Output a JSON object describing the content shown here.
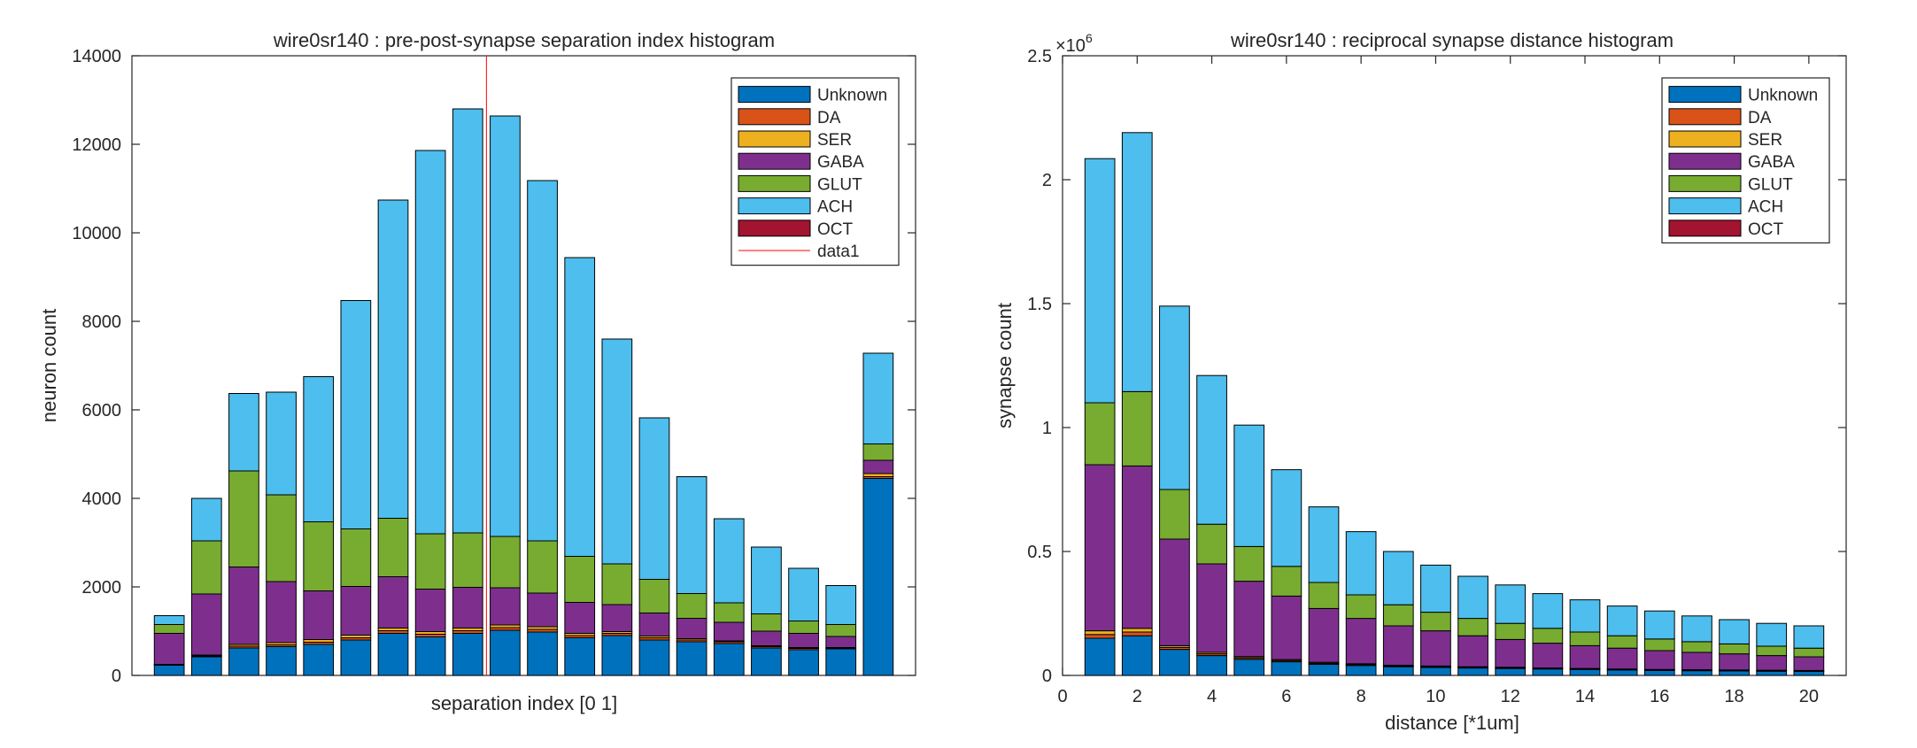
{
  "colors": {
    "Unknown": "#0072BD",
    "DA": "#D95319",
    "SER": "#EDB120",
    "GABA": "#7E2F8E",
    "GLUT": "#77AC30",
    "ACH": "#4DBEEE",
    "OCT": "#A2142F",
    "data1": "#FF0000"
  },
  "chart_data": [
    {
      "type": "bar",
      "stacked": true,
      "title": "wire0sr140 : pre-post-synapse separation index histogram",
      "xlabel": "separation index [0 1]",
      "ylabel": "neuron count",
      "ylim": [
        0,
        14000
      ],
      "yticks": [
        0,
        2000,
        4000,
        6000,
        8000,
        10000,
        12000,
        14000
      ],
      "ytick_labels": [
        "0",
        "2000",
        "4000",
        "6000",
        "8000",
        "10000",
        "12000",
        "14000"
      ],
      "xlim": [
        0,
        21
      ],
      "x": [
        1,
        2,
        3,
        4,
        5,
        6,
        7,
        8,
        9,
        10,
        11,
        12,
        13,
        14,
        15,
        16,
        17,
        18,
        19,
        20
      ],
      "legend_position": "top-right",
      "legend": [
        "Unknown",
        "DA",
        "SER",
        "GABA",
        "GLUT",
        "ACH",
        "OCT",
        "data1"
      ],
      "vline": {
        "name": "data1",
        "x": 9.5
      },
      "series": [
        {
          "name": "Unknown",
          "values": [
            230,
            420,
            620,
            650,
            700,
            800,
            950,
            870,
            950,
            1020,
            980,
            850,
            900,
            800,
            760,
            720,
            620,
            580,
            600,
            4450
          ]
        },
        {
          "name": "DA",
          "values": [
            10,
            20,
            40,
            40,
            50,
            50,
            60,
            60,
            60,
            60,
            60,
            50,
            50,
            50,
            40,
            40,
            30,
            30,
            20,
            40
          ]
        },
        {
          "name": "SER",
          "values": [
            10,
            20,
            40,
            50,
            60,
            60,
            60,
            60,
            60,
            60,
            60,
            50,
            40,
            40,
            30,
            20,
            20,
            20,
            10,
            70
          ]
        },
        {
          "name": "GABA",
          "values": [
            700,
            1380,
            1750,
            1380,
            1100,
            1100,
            1160,
            960,
            920,
            840,
            760,
            700,
            610,
            520,
            460,
            420,
            330,
            320,
            250,
            300
          ]
        },
        {
          "name": "GLUT",
          "values": [
            200,
            1200,
            2170,
            1960,
            1560,
            1300,
            1320,
            1250,
            1230,
            1160,
            1180,
            1040,
            920,
            760,
            560,
            440,
            390,
            280,
            270,
            370
          ]
        },
        {
          "name": "ACH",
          "values": [
            200,
            960,
            1750,
            2320,
            3280,
            5160,
            7190,
            8660,
            9580,
            9500,
            8140,
            6750,
            5080,
            3650,
            2640,
            1900,
            1510,
            1190,
            880,
            2050
          ]
        },
        {
          "name": "OCT",
          "values": [
            0,
            0,
            0,
            0,
            0,
            0,
            0,
            0,
            0,
            0,
            0,
            0,
            0,
            0,
            0,
            0,
            0,
            0,
            0,
            0
          ]
        }
      ]
    },
    {
      "type": "bar",
      "stacked": true,
      "title": "wire0sr140 : reciprocal synapse distance histogram",
      "xlabel": "distance [*1um]",
      "ylabel": "synapse count",
      "exponent_label": "×10",
      "exponent_power": "6",
      "ylim": [
        0,
        2.5
      ],
      "yticks": [
        0,
        0.5,
        1,
        1.5,
        2,
        2.5
      ],
      "ytick_labels": [
        "0",
        "0.5",
        "1",
        "1.5",
        "2",
        "2.5"
      ],
      "xlim": [
        0,
        21
      ],
      "xticks": [
        0,
        2,
        4,
        6,
        8,
        10,
        12,
        14,
        16,
        18,
        20
      ],
      "xtick_labels": [
        "0",
        "2",
        "4",
        "6",
        "8",
        "10",
        "12",
        "14",
        "16",
        "18",
        "20"
      ],
      "x": [
        1,
        2,
        3,
        4,
        5,
        6,
        7,
        8,
        9,
        10,
        11,
        12,
        13,
        14,
        15,
        16,
        17,
        18,
        19,
        20
      ],
      "legend_position": "top-right",
      "legend": [
        "Unknown",
        "DA",
        "SER",
        "GABA",
        "GLUT",
        "ACH",
        "OCT"
      ],
      "series": [
        {
          "name": "Unknown",
          "values": [
            0.15,
            0.16,
            0.105,
            0.08,
            0.065,
            0.055,
            0.045,
            0.04,
            0.035,
            0.032,
            0.03,
            0.028,
            0.026,
            0.024,
            0.022,
            0.02,
            0.019,
            0.018,
            0.017,
            0.016
          ]
        },
        {
          "name": "DA",
          "values": [
            0.015,
            0.015,
            0.008,
            0.007,
            0.006,
            0.005,
            0.004,
            0.004,
            0.003,
            0.003,
            0.003,
            0.003,
            0.002,
            0.002,
            0.002,
            0.002,
            0.002,
            0.002,
            0.002,
            0.002
          ]
        },
        {
          "name": "SER",
          "values": [
            0.015,
            0.015,
            0.007,
            0.006,
            0.005,
            0.004,
            0.004,
            0.003,
            0.003,
            0.003,
            0.002,
            0.002,
            0.002,
            0.002,
            0.002,
            0.002,
            0.002,
            0.002,
            0.002,
            0.002
          ]
        },
        {
          "name": "GABA",
          "values": [
            0.67,
            0.655,
            0.43,
            0.357,
            0.304,
            0.256,
            0.217,
            0.183,
            0.159,
            0.142,
            0.125,
            0.112,
            0.1,
            0.092,
            0.084,
            0.076,
            0.07,
            0.065,
            0.059,
            0.055
          ]
        },
        {
          "name": "GLUT",
          "values": [
            0.25,
            0.3,
            0.2,
            0.16,
            0.14,
            0.12,
            0.105,
            0.095,
            0.085,
            0.075,
            0.07,
            0.065,
            0.06,
            0.055,
            0.05,
            0.047,
            0.043,
            0.04,
            0.038,
            0.035
          ]
        },
        {
          "name": "ACH",
          "values": [
            0.985,
            1.045,
            0.74,
            0.6,
            0.49,
            0.39,
            0.305,
            0.255,
            0.215,
            0.19,
            0.17,
            0.155,
            0.14,
            0.13,
            0.12,
            0.113,
            0.104,
            0.098,
            0.092,
            0.09
          ]
        },
        {
          "name": "OCT",
          "values": [
            0,
            0,
            0,
            0,
            0,
            0,
            0,
            0,
            0,
            0,
            0,
            0,
            0,
            0,
            0,
            0,
            0,
            0,
            0,
            0
          ]
        }
      ]
    }
  ]
}
